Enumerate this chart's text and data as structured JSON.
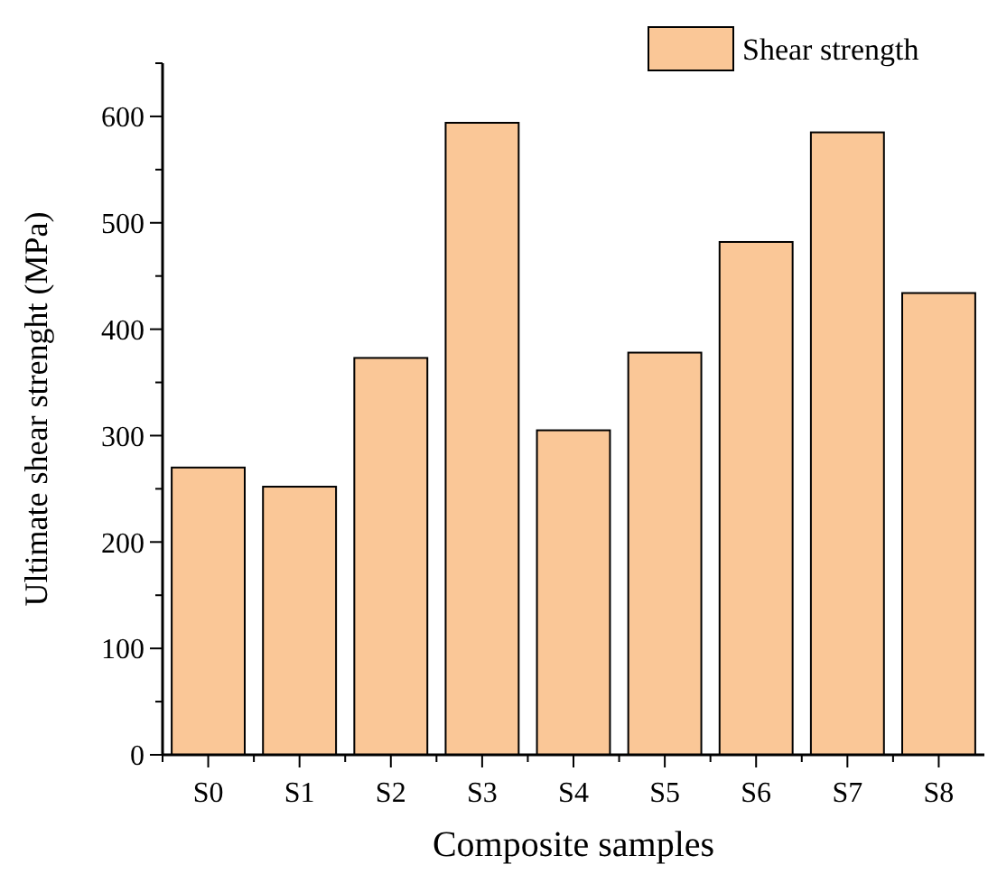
{
  "chart_data": {
    "type": "bar",
    "xlabel": "Composite samples",
    "ylabel": "Ultimate shear strenght (MPa)",
    "categories": [
      "S0",
      "S1",
      "S2",
      "S3",
      "S4",
      "S5",
      "S6",
      "S7",
      "S8"
    ],
    "series": [
      {
        "name": "Shear strength",
        "color": "#fac797",
        "values": [
          270,
          252,
          373,
          594,
          305,
          378,
          482,
          585,
          434
        ]
      }
    ],
    "ylim": [
      0,
      650
    ],
    "yticks": [
      0,
      100,
      200,
      300,
      400,
      500,
      600
    ],
    "grid": false,
    "legend": "top right"
  }
}
